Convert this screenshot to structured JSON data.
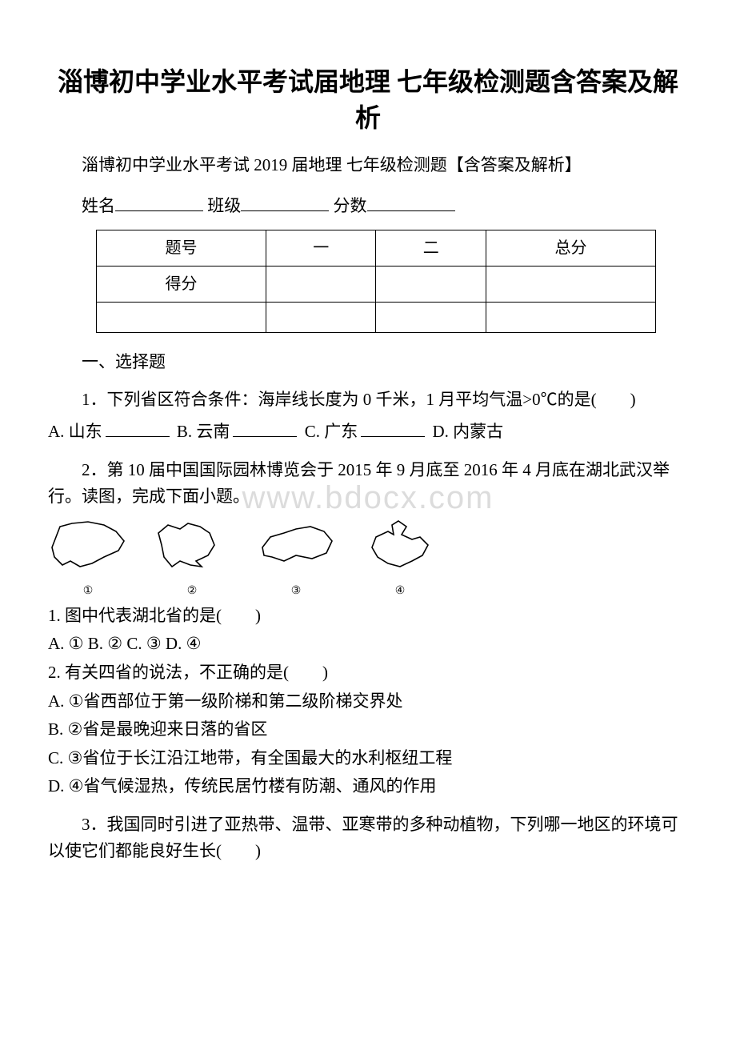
{
  "title": "淄博初中学业水平考试届地理 七年级检测题含答案及解析",
  "subtitle": "淄博初中学业水平考试 2019 届地理 七年级检测题【含答案及解析】",
  "form": {
    "name_label": "姓名",
    "class_label": "班级",
    "score_label": "分数"
  },
  "score_table": {
    "headers": [
      "题号",
      "一",
      "二",
      "总分"
    ],
    "row_label": "得分"
  },
  "section1": "一、选择题",
  "q1": {
    "stem": "1．下列省区符合条件：海岸线长度为 0 千米，1 月平均气温>0℃的是(　　)",
    "options": [
      {
        "label": "A. 山东"
      },
      {
        "label": "B. 云南"
      },
      {
        "label": "C. 广东"
      },
      {
        "label": "D. 内蒙古"
      }
    ]
  },
  "q2": {
    "stem": "2．第 10 届中国国际园林博览会于 2015 年 9 月底至 2016 年 4 月底在湖北武汉举行。读图，完成下面小题。",
    "shape_labels": [
      "①",
      "②",
      "③",
      "④"
    ],
    "sub1": "1. 图中代表湖北省的是(　　)",
    "sub1_opts": "A. ① B. ② C. ③ D. ④",
    "sub2": "2. 有关四省的说法，不正确的是(　　)",
    "sub2_opts": [
      "A. ①省西部位于第一级阶梯和第二级阶梯交界处",
      "B. ②省是最晚迎来日落的省区",
      "C. ③省位于长江沿江地带，有全国最大的水利枢纽工程",
      "D. ④省气候湿热，传统民居竹楼有防潮、通风的作用"
    ]
  },
  "q3": {
    "stem": "3．我国同时引进了亚热带、温带、亚寒带的多种动植物，下列哪一地区的环境可以使它们都能良好生长(　　)"
  },
  "watermark_text": "www.bdocx.com",
  "shapes": {
    "stroke": "#000000",
    "stroke_width": 1.6,
    "fill": "none",
    "paths": [
      "M10,25 L15,12 L30,8 L50,6 L70,10 L85,18 L95,30 L88,42 L70,50 L55,58 L40,62 L28,55 L18,60 L8,50 L5,38 Z",
      "M12,35 L8,20 L20,10 L35,15 L45,8 L60,12 L72,20 L78,35 L70,48 L55,55 L62,62 L48,60 L35,55 L25,62 L15,50 Z",
      "M8,38 L18,25 L35,20 L50,15 L68,12 L85,18 L95,30 L88,45 L70,52 L50,48 L35,55 L20,50 L10,48 Z",
      "M48,5 L58,12 L52,22 L65,28 L75,25 L85,35 L78,48 L65,55 L50,62 L35,58 L22,50 L15,38 L20,25 L35,18 L42,22 L40,10 Z"
    ]
  }
}
